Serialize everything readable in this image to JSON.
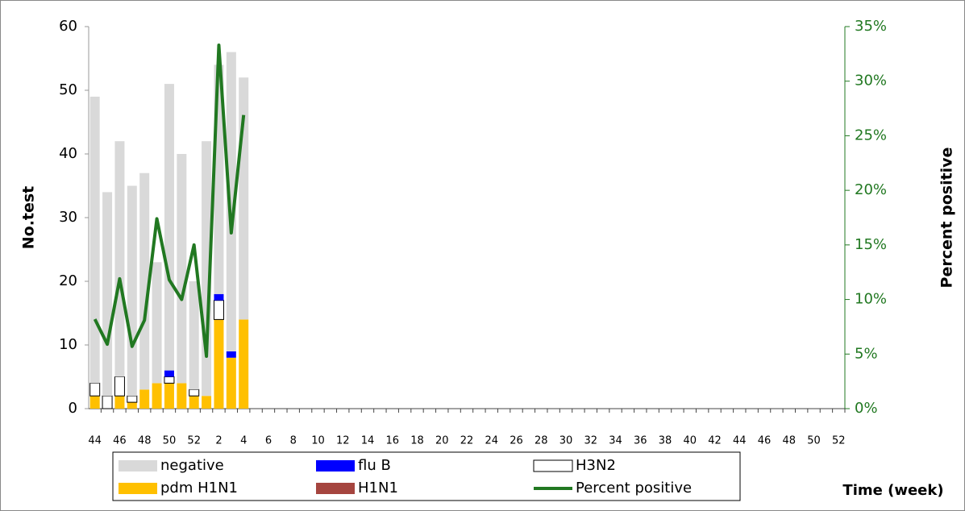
{
  "chart_data": {
    "type": "bar",
    "categories": [
      "44",
      null,
      "46",
      null,
      "48",
      null,
      "50",
      null,
      "52",
      null,
      "2",
      null,
      "4",
      null,
      "6",
      null,
      "8",
      null,
      "10",
      null,
      "12",
      null,
      "14",
      null,
      "16",
      null,
      "18",
      null,
      "20",
      null,
      "22",
      null,
      "24",
      null,
      "26",
      null,
      "28",
      null,
      "30",
      null,
      "32",
      null,
      "34",
      null,
      "36",
      null,
      "38",
      null,
      "40",
      null,
      "42",
      null,
      "44",
      null,
      "46",
      null,
      "48",
      null,
      "50",
      null,
      "52"
    ],
    "stacked": true,
    "series": [
      {
        "name": "pdm H1N1",
        "color": "#ffc000",
        "values": [
          2,
          0,
          2,
          1,
          3,
          4,
          4,
          4,
          2,
          2,
          14,
          8,
          14,
          null,
          null,
          null,
          null,
          null,
          null,
          null,
          null,
          null,
          null,
          null,
          null,
          null,
          null,
          null,
          null,
          null,
          null,
          null,
          null,
          null,
          null,
          null,
          null,
          null,
          null,
          null,
          null,
          null,
          null,
          null,
          null,
          null,
          null,
          null,
          null,
          null,
          null,
          null,
          null,
          null,
          null,
          null,
          null,
          null,
          null,
          null,
          null
        ]
      },
      {
        "name": "H1N1",
        "color": "#a5453f",
        "values": [
          0,
          0,
          0,
          0,
          0,
          0,
          0,
          0,
          0,
          0,
          0,
          0,
          0,
          null,
          null,
          null,
          null,
          null,
          null,
          null,
          null,
          null,
          null,
          null,
          null,
          null,
          null,
          null,
          null,
          null,
          null,
          null,
          null,
          null,
          null,
          null,
          null,
          null,
          null,
          null,
          null,
          null,
          null,
          null,
          null,
          null,
          null,
          null,
          null,
          null,
          null,
          null,
          null,
          null,
          null,
          null,
          null,
          null,
          null,
          null,
          null
        ]
      },
      {
        "name": "H3N2",
        "color": "#ffffff",
        "values": [
          2,
          2,
          3,
          1,
          0,
          0,
          1,
          0,
          1,
          0,
          3,
          0,
          0,
          null,
          null,
          null,
          null,
          null,
          null,
          null,
          null,
          null,
          null,
          null,
          null,
          null,
          null,
          null,
          null,
          null,
          null,
          null,
          null,
          null,
          null,
          null,
          null,
          null,
          null,
          null,
          null,
          null,
          null,
          null,
          null,
          null,
          null,
          null,
          null,
          null,
          null,
          null,
          null,
          null,
          null,
          null,
          null,
          null,
          null,
          null,
          null
        ]
      },
      {
        "name": "flu B",
        "color": "#0000ff",
        "values": [
          0,
          0,
          0,
          0,
          0,
          0,
          1,
          0,
          0,
          0,
          1,
          1,
          0,
          null,
          null,
          null,
          null,
          null,
          null,
          null,
          null,
          null,
          null,
          null,
          null,
          null,
          null,
          null,
          null,
          null,
          null,
          null,
          null,
          null,
          null,
          null,
          null,
          null,
          null,
          null,
          null,
          null,
          null,
          null,
          null,
          null,
          null,
          null,
          null,
          null,
          null,
          null,
          null,
          null,
          null,
          null,
          null,
          null,
          null,
          null,
          null
        ]
      },
      {
        "name": "negative",
        "color": "#d9d9d9",
        "values": [
          45,
          32,
          37,
          33,
          34,
          19,
          45,
          36,
          17,
          40,
          36,
          47,
          38,
          null,
          null,
          null,
          null,
          null,
          null,
          null,
          null,
          null,
          null,
          null,
          null,
          null,
          null,
          null,
          null,
          null,
          null,
          null,
          null,
          null,
          null,
          null,
          null,
          null,
          null,
          null,
          null,
          null,
          null,
          null,
          null,
          null,
          null,
          null,
          null,
          null,
          null,
          null,
          null,
          null,
          null,
          null,
          null,
          null,
          null,
          null,
          null
        ]
      },
      {
        "name": "Percent positive",
        "type": "line",
        "axis": "y2",
        "color": "#217821",
        "values": [
          8.2,
          5.9,
          11.9,
          5.7,
          8.1,
          17.4,
          11.8,
          10,
          15,
          4.8,
          33.3,
          16.1,
          26.9,
          null,
          null,
          null,
          null,
          null,
          null,
          null,
          null,
          null,
          null,
          null,
          null,
          null,
          null,
          null,
          null,
          null,
          null,
          null,
          null,
          null,
          null,
          null,
          null,
          null,
          null,
          null,
          null,
          null,
          null,
          null,
          null,
          null,
          null,
          null,
          null,
          null,
          null,
          null,
          null,
          null,
          null,
          null,
          null,
          null,
          null,
          null,
          null
        ]
      }
    ],
    "ylabel": "No.test",
    "y2label": "Percent  positive",
    "xlabel": "Time (week)",
    "ylim": [
      0,
      60
    ],
    "yticks": [
      0,
      10,
      20,
      30,
      40,
      50,
      60
    ],
    "y2lim": [
      0,
      35
    ],
    "y2ticks": [
      {
        "value": 0,
        "label": "0%"
      },
      {
        "value": 5,
        "label": "5%"
      },
      {
        "value": 10,
        "label": "10%"
      },
      {
        "value": 15,
        "label": "15%"
      },
      {
        "value": 20,
        "label": "20%"
      },
      {
        "value": 25,
        "label": "25%"
      },
      {
        "value": 30,
        "label": "30%"
      },
      {
        "value": 35,
        "label": "35%"
      }
    ],
    "y2color": "#217821"
  }
}
